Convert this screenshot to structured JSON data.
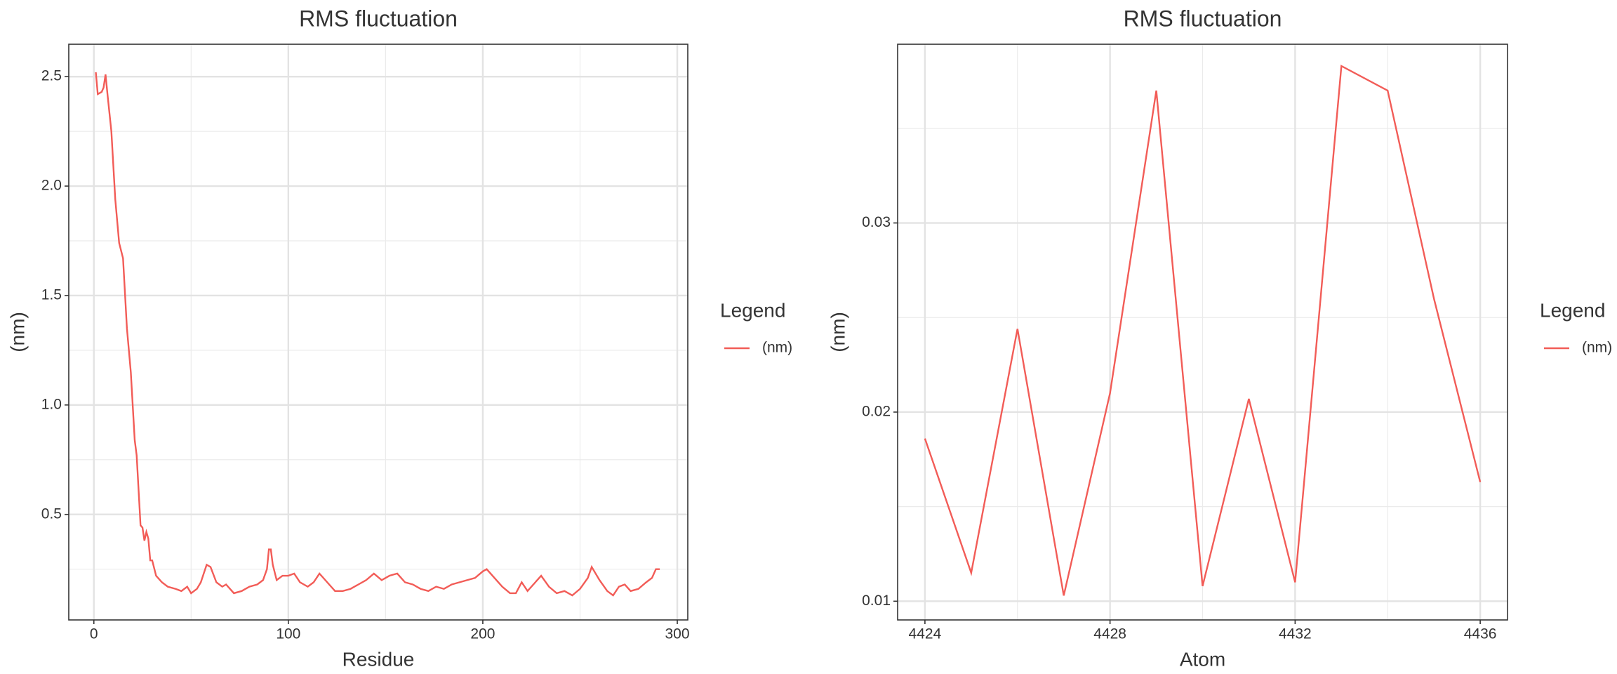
{
  "chart_data": [
    {
      "type": "line",
      "title": "RMS fluctuation",
      "x_label": "Residue",
      "y_label": "(nm)",
      "legend_title": "Legend",
      "x": [
        1,
        2,
        4,
        5,
        6,
        7,
        9,
        11,
        13,
        15,
        17,
        19,
        21,
        22,
        24,
        25,
        26,
        27,
        28,
        29,
        30,
        32,
        35,
        38,
        42,
        45,
        48,
        50,
        53,
        55,
        58,
        60,
        63,
        66,
        68,
        72,
        76,
        80,
        84,
        87,
        89,
        90,
        91,
        92,
        94,
        97,
        100,
        103,
        106,
        110,
        113,
        116,
        118,
        121,
        124,
        128,
        132,
        136,
        140,
        144,
        148,
        152,
        156,
        160,
        164,
        168,
        172,
        176,
        180,
        184,
        188,
        192,
        196,
        200,
        202,
        206,
        210,
        214,
        217,
        220,
        223,
        227,
        230,
        234,
        238,
        242,
        246,
        250,
        254,
        256,
        260,
        264,
        267,
        270,
        273,
        276,
        280,
        284,
        287,
        289,
        291
      ],
      "series": [
        {
          "name": "(nm)",
          "color": "#f25c57",
          "values": [
            2.52,
            2.42,
            2.43,
            2.45,
            2.51,
            2.42,
            2.25,
            1.94,
            1.74,
            1.67,
            1.35,
            1.15,
            0.84,
            0.77,
            0.45,
            0.44,
            0.38,
            0.42,
            0.39,
            0.29,
            0.29,
            0.22,
            0.19,
            0.17,
            0.16,
            0.15,
            0.17,
            0.14,
            0.16,
            0.19,
            0.27,
            0.26,
            0.19,
            0.17,
            0.18,
            0.14,
            0.15,
            0.17,
            0.18,
            0.2,
            0.25,
            0.34,
            0.34,
            0.27,
            0.2,
            0.22,
            0.22,
            0.23,
            0.19,
            0.17,
            0.19,
            0.23,
            0.21,
            0.18,
            0.15,
            0.15,
            0.16,
            0.18,
            0.2,
            0.23,
            0.2,
            0.22,
            0.23,
            0.19,
            0.18,
            0.16,
            0.15,
            0.17,
            0.16,
            0.18,
            0.19,
            0.2,
            0.21,
            0.24,
            0.25,
            0.21,
            0.17,
            0.14,
            0.14,
            0.19,
            0.15,
            0.19,
            0.22,
            0.17,
            0.14,
            0.15,
            0.13,
            0.16,
            0.21,
            0.26,
            0.2,
            0.15,
            0.13,
            0.17,
            0.18,
            0.15,
            0.16,
            0.19,
            0.21,
            0.25,
            0.25
          ]
        }
      ],
      "xlim": [
        -12.9,
        305.4
      ],
      "xticks": [
        0,
        100,
        200,
        300
      ],
      "ylim": [
        0.018,
        2.648
      ],
      "yticks": [
        0.5,
        {
          "value": 1,
          "label": "1.0"
        },
        1.5,
        {
          "value": 2,
          "label": "2.0"
        },
        2.5
      ],
      "grid": true
    },
    {
      "type": "line",
      "title": "RMS fluctuation",
      "x_label": "Atom",
      "y_label": "(nm)",
      "legend_title": "Legend",
      "x": [
        4424,
        4425,
        4426,
        4427,
        4428,
        4429,
        4430,
        4431,
        4432,
        4433,
        4434,
        4435,
        4436
      ],
      "series": [
        {
          "name": "(nm)",
          "color": "#f25c57",
          "values": [
            0.0186,
            0.0115,
            0.0244,
            0.0103,
            0.021,
            0.037,
            0.0108,
            0.0207,
            0.011,
            0.0383,
            0.037,
            0.026,
            0.0163
          ]
        }
      ],
      "xlim": [
        4423.41,
        4436.59
      ],
      "xticks": [
        4424,
        4428,
        4432,
        4436
      ],
      "ylim": [
        0.00901,
        0.03945
      ],
      "yticks": [
        0.01,
        0.02,
        0.03
      ],
      "grid": true
    }
  ]
}
